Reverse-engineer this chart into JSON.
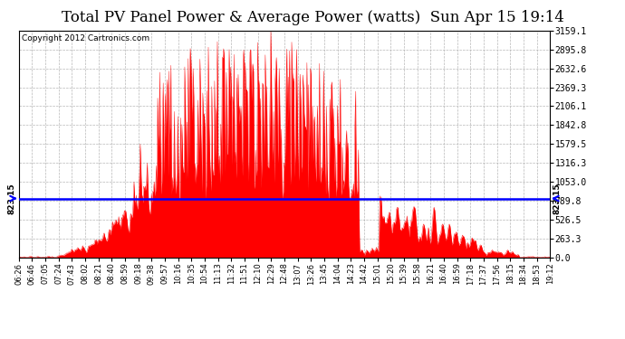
{
  "title": "Total PV Panel Power & Average Power (watts)  Sun Apr 15 19:14",
  "copyright": "Copyright 2012 Cartronics.com",
  "average_line": 823.15,
  "ymax": 3159.1,
  "yticks": [
    0.0,
    263.3,
    526.5,
    789.8,
    1053.0,
    1316.3,
    1579.5,
    1842.8,
    2106.1,
    2369.3,
    2632.6,
    2895.8,
    3159.1
  ],
  "avg_label": "823.15",
  "fill_color": "#ff0000",
  "line_color": "#0000ff",
  "bg_color": "#ffffff",
  "grid_color": "#b0b0b0",
  "title_fontsize": 12,
  "copyright_fontsize": 6.5,
  "x_tick_labels": [
    "06:26",
    "06:46",
    "07:05",
    "07:24",
    "07:43",
    "08:02",
    "08:21",
    "08:40",
    "08:59",
    "09:18",
    "09:38",
    "09:57",
    "10:16",
    "10:35",
    "10:54",
    "11:13",
    "11:32",
    "11:51",
    "12:10",
    "12:29",
    "12:48",
    "13:07",
    "13:26",
    "13:45",
    "14:04",
    "14:23",
    "14:42",
    "15:01",
    "15:20",
    "15:39",
    "15:58",
    "16:21",
    "16:40",
    "16:59",
    "17:18",
    "17:37",
    "17:56",
    "18:15",
    "18:34",
    "18:53",
    "19:12"
  ]
}
